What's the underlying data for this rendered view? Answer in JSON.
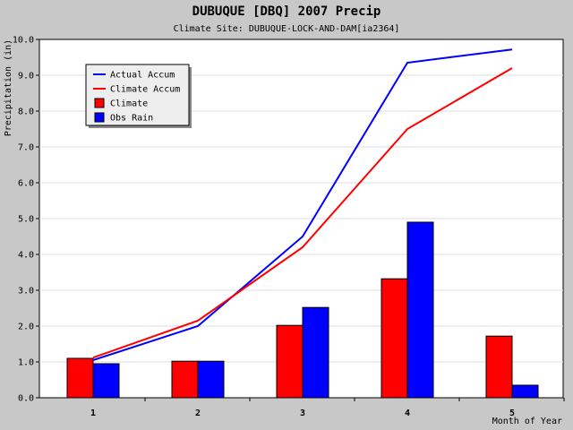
{
  "chart_data": {
    "type": "bar",
    "title": "DUBUQUE [DBQ] 2007 Precip",
    "subtitle": "Climate Site: DUBUQUE-LOCK-AND-DAM[ia2364]",
    "xlabel": "Month of Year",
    "ylabel": "Precipitation (in)",
    "categories": [
      "1",
      "2",
      "3",
      "4",
      "5"
    ],
    "ylim": [
      0,
      10
    ],
    "yticks": [
      "0.0",
      "1.0",
      "2.0",
      "3.0",
      "4.0",
      "5.0",
      "6.0",
      "7.0",
      "8.0",
      "9.0",
      "10.0"
    ],
    "grid": true,
    "legend_position": "top-left",
    "bar_series": [
      {
        "name": "Climate",
        "color": "#ff0000",
        "values": [
          1.1,
          1.02,
          2.02,
          3.32,
          1.72
        ]
      },
      {
        "name": "Obs Rain",
        "color": "#0000ff",
        "values": [
          0.95,
          1.02,
          2.52,
          4.9,
          0.35
        ]
      }
    ],
    "line_series": [
      {
        "name": "Actual Accum",
        "color": "#0000ff",
        "values": [
          1.05,
          2.0,
          4.5,
          9.35,
          9.72
        ]
      },
      {
        "name": "Climate Accum",
        "color": "#ff0000",
        "values": [
          1.12,
          2.15,
          4.2,
          7.5,
          9.2
        ]
      }
    ],
    "legend": [
      "Actual Accum",
      "Climate Accum",
      "Climate",
      "Obs Rain"
    ]
  }
}
